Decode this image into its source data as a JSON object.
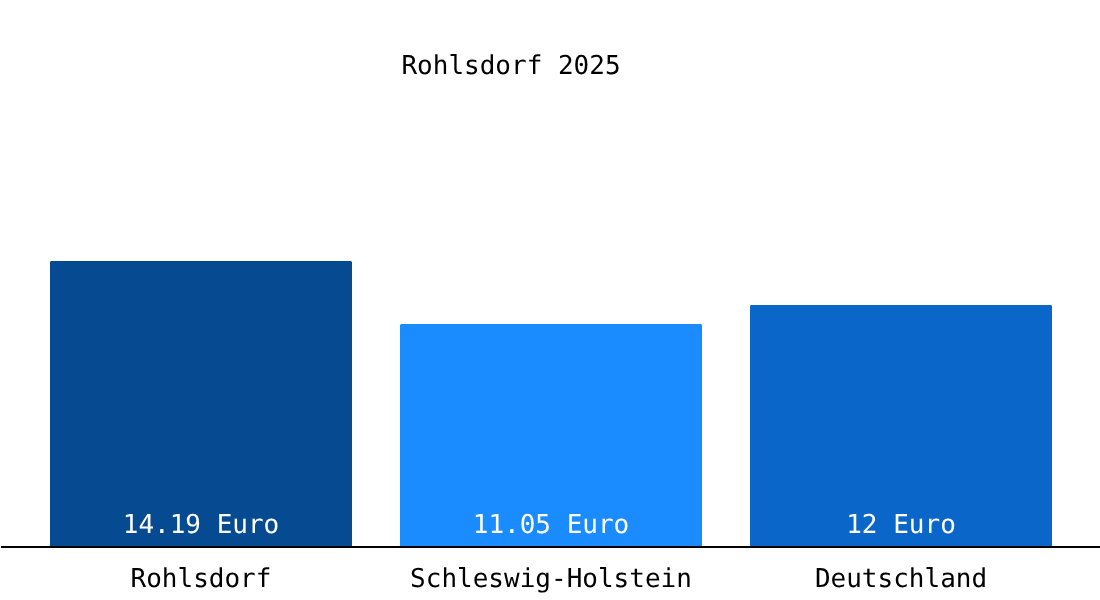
{
  "chart_data": {
    "type": "bar",
    "title": "Rohlsdorf 2025",
    "categories": [
      "Rohlsdorf",
      "Schleswig-Holstein",
      "Deutschland"
    ],
    "values": [
      14.19,
      11.05,
      12
    ],
    "colors": [
      "#064a92",
      "#1a8cff",
      "#0a66c8"
    ],
    "value_labels": [
      "14.19 Euro",
      "11.05 Euro",
      "12 Euro"
    ]
  }
}
